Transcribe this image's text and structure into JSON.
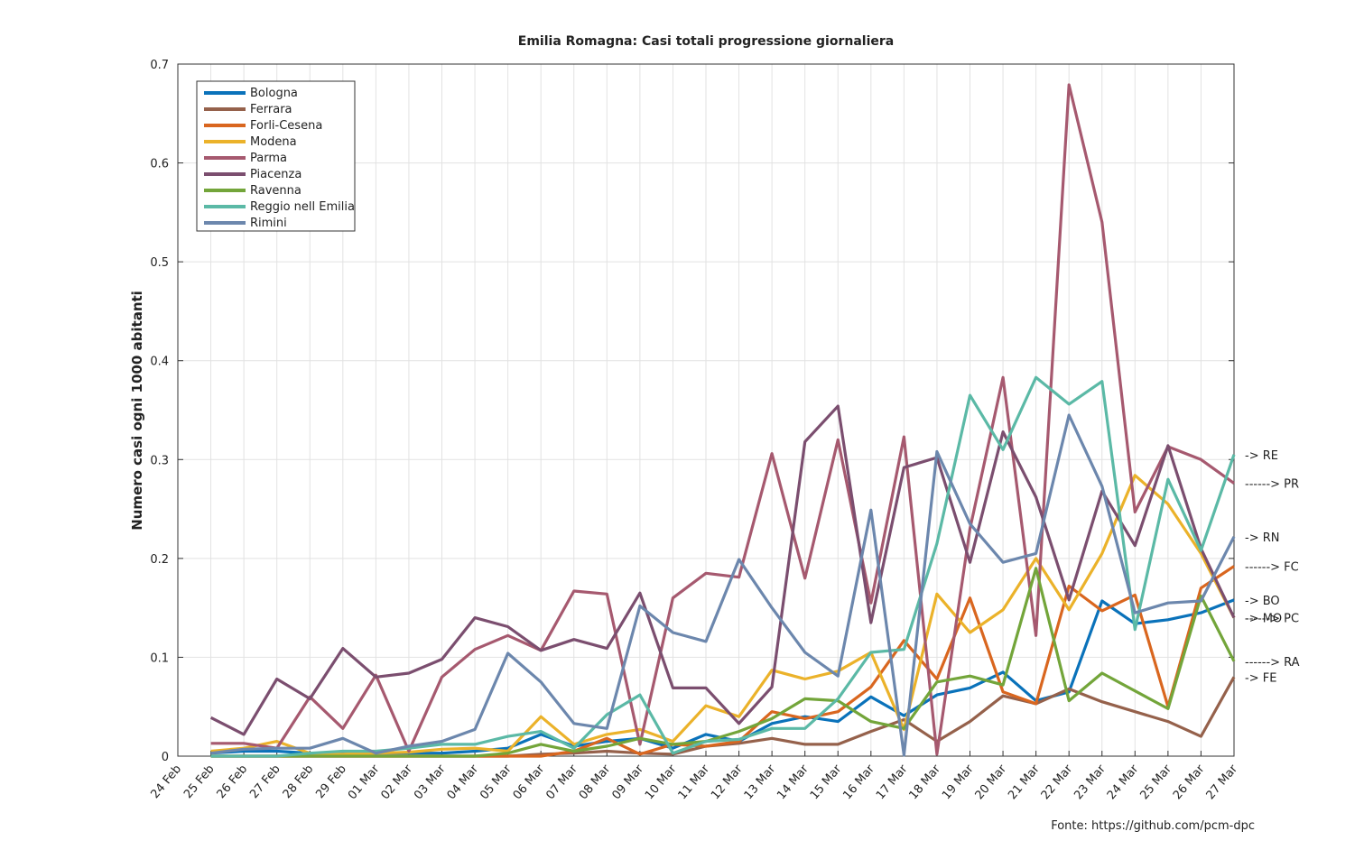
{
  "chart_data": {
    "type": "line",
    "title": "Emilia Romagna: Casi totali progressione giornaliera",
    "y_label": "Numero casi ogni 1000 abitanti",
    "source": "Fonte: https://github.com/pcm-dpc",
    "categories": [
      "24 Feb",
      "25 Feb",
      "26 Feb",
      "27 Feb",
      "28 Feb",
      "29 Feb",
      "01 Mar",
      "02 Mar",
      "03 Mar",
      "04 Mar",
      "05 Mar",
      "06 Mar",
      "07 Mar",
      "08 Mar",
      "09 Mar",
      "10 Mar",
      "11 Mar",
      "12 Mar",
      "13 Mar",
      "14 Mar",
      "15 Mar",
      "16 Mar",
      "17 Mar",
      "18 Mar",
      "19 Mar",
      "20 Mar",
      "21 Mar",
      "22 Mar",
      "23 Mar",
      "24 Mar",
      "25 Mar",
      "26 Mar",
      "27 Mar"
    ],
    "ylim": [
      0,
      0.7
    ],
    "yticks": [
      0,
      0.1,
      0.2,
      0.3,
      0.4,
      0.5,
      0.6,
      0.7
    ],
    "grid": true,
    "legend": "upper left",
    "series": [
      {
        "name": "Bologna",
        "color": "#0a72ba",
        "annotation": "-> BO",
        "values": [
          null,
          0.003,
          0.005,
          0.005,
          0.003,
          0.003,
          0.003,
          0.003,
          0.003,
          0.005,
          0.008,
          0.022,
          0.01,
          0.015,
          0.018,
          0.008,
          0.022,
          0.015,
          0.033,
          0.04,
          0.035,
          0.06,
          0.041,
          0.062,
          0.069,
          0.085,
          0.056,
          0.065,
          0.157,
          0.134,
          0.138,
          0.145,
          0.158
        ]
      },
      {
        "name": "Ferrara",
        "color": "#95614b",
        "annotation": "-> FE",
        "values": [
          null,
          0,
          0,
          0,
          0,
          0,
          0,
          0,
          0,
          0,
          0,
          0.002,
          0.003,
          0.005,
          0.003,
          0.002,
          0.01,
          0.013,
          0.018,
          0.012,
          0.012,
          0.025,
          0.037,
          0.015,
          0.035,
          0.061,
          0.053,
          0.068,
          0.055,
          0.045,
          0.035,
          0.02,
          0.08
        ]
      },
      {
        "name": "Forli-Cesena",
        "color": "#d9661f",
        "annotation": "------> FC",
        "values": [
          null,
          0,
          0,
          0,
          0,
          0,
          0,
          0,
          0,
          0,
          0,
          0,
          0.005,
          0.018,
          0.002,
          0.012,
          0.01,
          0.015,
          0.045,
          0.038,
          0.045,
          0.07,
          0.117,
          0.078,
          0.16,
          0.065,
          0.053,
          0.172,
          0.147,
          0.163,
          0.05,
          0.17,
          0.192
        ]
      },
      {
        "name": "Modena",
        "color": "#ebb22a",
        "annotation": "-> MO",
        "values": [
          null,
          0.005,
          0.008,
          0.015,
          0.003,
          0.002,
          0.003,
          0.004,
          0.007,
          0.008,
          0.005,
          0.04,
          0.012,
          0.022,
          0.027,
          0.015,
          0.051,
          0.04,
          0.087,
          0.078,
          0.086,
          0.105,
          0.027,
          0.164,
          0.125,
          0.148,
          0.2,
          0.148,
          0.205,
          0.284,
          0.255,
          0.205,
          0.14
        ]
      },
      {
        "name": "Parma",
        "color": "#a6596f",
        "annotation": "------> PR",
        "values": [
          null,
          0.013,
          0.013,
          0.008,
          0.06,
          0.028,
          0.082,
          0.005,
          0.08,
          0.108,
          0.122,
          0.107,
          0.167,
          0.164,
          0.012,
          0.16,
          0.185,
          0.181,
          0.306,
          0.18,
          0.32,
          0.155,
          0.323,
          0.002,
          0.23,
          0.383,
          0.122,
          0.679,
          0.54,
          0.247,
          0.313,
          0.3,
          0.276
        ]
      },
      {
        "name": "Piacenza",
        "color": "#7b4e6f",
        "annotation": "------> PC",
        "values": [
          null,
          0.039,
          0.022,
          0.078,
          0.058,
          0.109,
          0.08,
          0.084,
          0.098,
          0.14,
          0.131,
          0.107,
          0.118,
          0.109,
          0.165,
          0.069,
          0.069,
          0.033,
          0.07,
          0.318,
          0.354,
          0.135,
          0.292,
          0.302,
          0.196,
          0.328,
          0.262,
          0.158,
          0.268,
          0.213,
          0.314,
          0.21,
          0.14
        ]
      },
      {
        "name": "Ravenna",
        "color": "#73a53a",
        "annotation": "------> RA",
        "values": [
          null,
          0,
          0,
          0,
          0,
          0,
          0,
          0,
          0,
          0,
          0.003,
          0.012,
          0.005,
          0.01,
          0.018,
          0.012,
          0.015,
          0.025,
          0.038,
          0.058,
          0.056,
          0.035,
          0.028,
          0.075,
          0.081,
          0.072,
          0.19,
          0.056,
          0.084,
          0.066,
          0.048,
          0.162,
          0.096
        ]
      },
      {
        "name": "Reggio nell Emilia",
        "color": "#5bb9a6",
        "annotation": "-> RE",
        "values": [
          null,
          0,
          0,
          0,
          0.003,
          0.005,
          0.005,
          0.008,
          0.012,
          0.012,
          0.02,
          0.025,
          0.008,
          0.042,
          0.062,
          0.003,
          0.015,
          0.017,
          0.028,
          0.028,
          0.058,
          0.105,
          0.108,
          0.215,
          0.365,
          0.31,
          0.383,
          0.356,
          0.379,
          0.128,
          0.28,
          0.208,
          0.305
        ]
      },
      {
        "name": "Rimini",
        "color": "#6c87ad",
        "annotation": "-> RN",
        "values": [
          null,
          0.003,
          0.007,
          0.008,
          0.008,
          0.018,
          0.003,
          0.01,
          0.015,
          0.027,
          0.104,
          0.075,
          0.033,
          0.028,
          0.152,
          0.125,
          0.116,
          0.199,
          0.15,
          0.105,
          0.081,
          0.249,
          0.001,
          0.308,
          0.235,
          0.196,
          0.205,
          0.345,
          0.273,
          0.145,
          0.155,
          0.157,
          0.222
        ]
      }
    ]
  }
}
